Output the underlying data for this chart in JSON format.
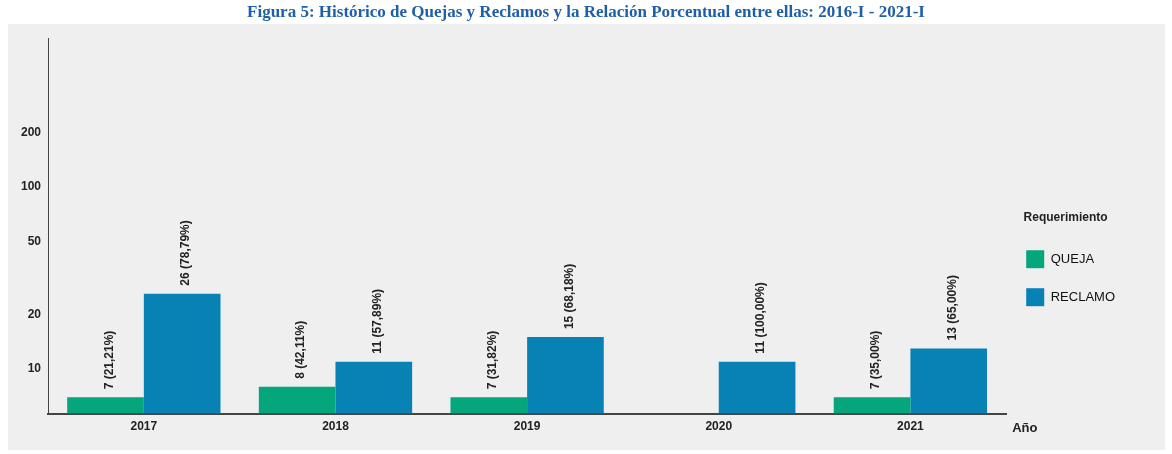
{
  "chart_data": {
    "type": "bar",
    "title": "Figura 5: Histórico de Quejas y Reclamos y la Relación Porcentual entre ellas: 2016-I - 2021-I",
    "xlabel": "Año",
    "legend_title": "Requerimiento",
    "categories": [
      "2017",
      "2018",
      "2019",
      "2020",
      "2021"
    ],
    "series": [
      {
        "name": "QUEJA",
        "color": "#05a67b",
        "values": [
          7,
          8,
          7,
          null,
          7
        ],
        "value_labels": [
          "7 (21,21%)",
          "8 (42,11%)",
          "7 (31,82%)",
          null,
          "7 (35,00%)"
        ]
      },
      {
        "name": "RECLAMO",
        "color": "#0882b4",
        "values": [
          26,
          11,
          15,
          11,
          13
        ],
        "value_labels": [
          "26 (78,79%)",
          "11 (57,89%)",
          "15 (68,18%)",
          "11 (100,00%)",
          "13 (65,00%)"
        ]
      }
    ],
    "log": "y",
    "ylim": [
      5.7,
      660
    ],
    "yticks": [
      10,
      20,
      50,
      100,
      200
    ],
    "grid": false,
    "legend": "right"
  }
}
